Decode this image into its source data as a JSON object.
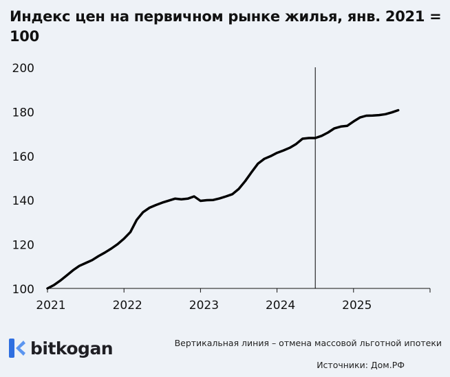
{
  "chart_data": {
    "type": "line",
    "title": "Индекс цен на первичном рынке жилья, янв. 2021 = 100",
    "xlabel": "",
    "ylabel": "",
    "ylim": [
      100,
      200
    ],
    "xlim": [
      "2021-01",
      "2026-01"
    ],
    "yticks": [
      "100",
      "120",
      "140",
      "160",
      "180",
      "200"
    ],
    "xticks": [
      "2021",
      "2022",
      "2023",
      "2024",
      "2025"
    ],
    "grid": false,
    "line_color": "#000000",
    "vertical_line": {
      "x": "2024-07",
      "color": "#000000"
    },
    "x": [
      "2021-01",
      "2021-02",
      "2021-03",
      "2021-04",
      "2021-05",
      "2021-06",
      "2021-07",
      "2021-08",
      "2021-09",
      "2021-10",
      "2021-11",
      "2021-12",
      "2022-01",
      "2022-02",
      "2022-03",
      "2022-04",
      "2022-05",
      "2022-06",
      "2022-07",
      "2022-08",
      "2022-09",
      "2022-10",
      "2022-11",
      "2022-12",
      "2023-01",
      "2023-02",
      "2023-03",
      "2023-04",
      "2023-05",
      "2023-06",
      "2023-07",
      "2023-08",
      "2023-09",
      "2023-10",
      "2023-11",
      "2023-12",
      "2024-01",
      "2024-02",
      "2024-03",
      "2024-04",
      "2024-05",
      "2024-06",
      "2024-07",
      "2024-08",
      "2024-09",
      "2024-10",
      "2024-11",
      "2024-12",
      "2025-01",
      "2025-02",
      "2025-03",
      "2025-04",
      "2025-05",
      "2025-06",
      "2025-07",
      "2025-08"
    ],
    "values": [
      100,
      101.5,
      103.5,
      105.8,
      108.2,
      110.2,
      111.5,
      112.8,
      114.6,
      116.2,
      118,
      120,
      122.5,
      125.5,
      131,
      134.5,
      136.5,
      137.7,
      138.8,
      139.7,
      140.6,
      140.3,
      140.6,
      141.6,
      139.6,
      139.9,
      140,
      140.7,
      141.6,
      142.6,
      145,
      148.5,
      152.5,
      156.4,
      158.6,
      159.8,
      161.3,
      162.4,
      163.6,
      165.3,
      167.7,
      168,
      168,
      169,
      170.5,
      172.4,
      173.2,
      173.5,
      175.5,
      177.3,
      178.1,
      178.2,
      178.4,
      178.8,
      179.6,
      180.6
    ]
  },
  "footer": {
    "brand": "bitkogan",
    "brand_color": "#2f6fe0",
    "note": "Вертикальная линия – отмена массовой льготной ипотеки",
    "source": "Источники: Дом.РФ"
  }
}
